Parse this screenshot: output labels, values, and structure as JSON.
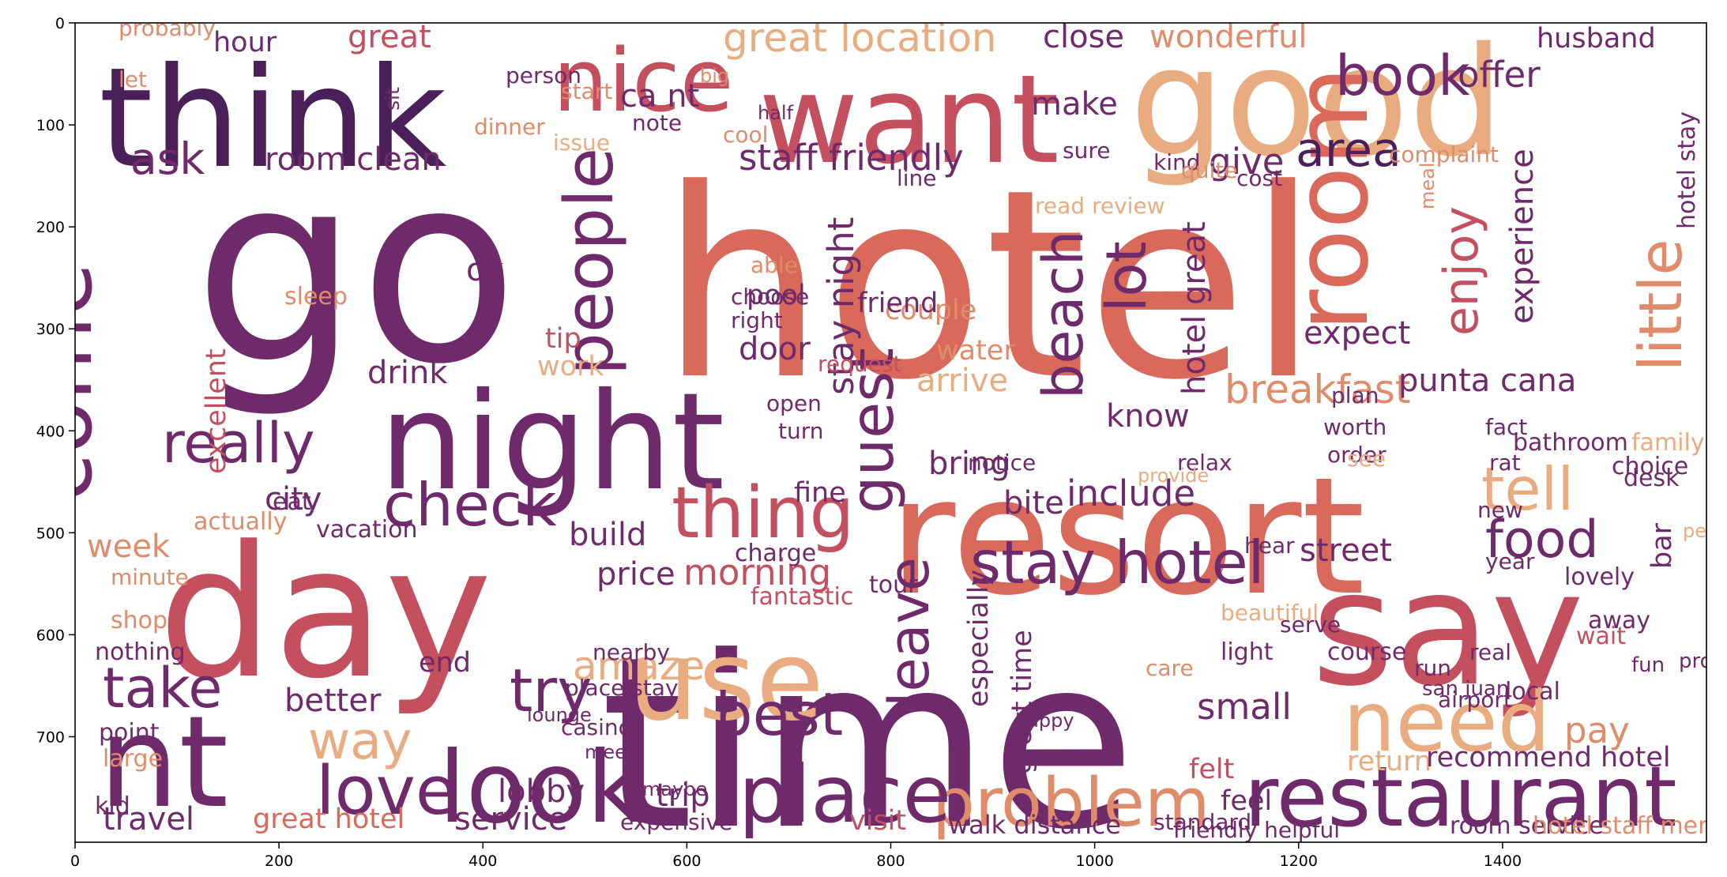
{
  "palette": [
    "#4a1f5a",
    "#6e2a6b",
    "#8f3b6e",
    "#c44f5f",
    "#d9695a",
    "#e08b6a",
    "#e9ab80",
    "#f0c6a0"
  ],
  "x_ticks": [
    "0",
    "200",
    "400",
    "600",
    "800",
    "1000",
    "1200",
    "1400"
  ],
  "y_ticks": [
    "0",
    "100",
    "200",
    "300",
    "400",
    "500",
    "600",
    "700"
  ],
  "words": [
    {
      "text": "hotel",
      "c": 4
    },
    {
      "text": "time",
      "c": 1
    },
    {
      "text": "go",
      "c": 1
    },
    {
      "text": "resort",
      "c": 4
    },
    {
      "text": "day",
      "c": 3
    },
    {
      "text": "say",
      "c": 3
    },
    {
      "text": "night",
      "c": 1
    },
    {
      "text": "think",
      "c": 0
    },
    {
      "text": "want",
      "c": 3
    },
    {
      "text": "good",
      "c": 6
    },
    {
      "text": "nt",
      "c": 1
    },
    {
      "text": "come",
      "c": 1
    },
    {
      "text": "room",
      "c": 4
    },
    {
      "text": "use",
      "c": 6
    },
    {
      "text": "nice",
      "c": 3
    },
    {
      "text": "restaurant",
      "c": 1
    },
    {
      "text": "look",
      "c": 1
    },
    {
      "text": "people",
      "c": 1
    },
    {
      "text": "problem",
      "c": 5
    },
    {
      "text": "need",
      "c": 6
    },
    {
      "text": "place",
      "c": 1
    },
    {
      "text": "little",
      "c": 5
    },
    {
      "text": "thing",
      "c": 3
    },
    {
      "text": "love",
      "c": 1
    },
    {
      "text": "check",
      "c": 1
    },
    {
      "text": "stay hotel",
      "c": 1
    },
    {
      "text": "really",
      "c": 1
    },
    {
      "text": "best",
      "c": 1
    },
    {
      "text": "food",
      "c": 1
    },
    {
      "text": "take",
      "c": 1
    },
    {
      "text": "tell",
      "c": 6
    },
    {
      "text": "guest",
      "c": 1
    },
    {
      "text": "book",
      "c": 1
    },
    {
      "text": "leave",
      "c": 1
    },
    {
      "text": "area",
      "c": 0
    },
    {
      "text": "beach",
      "c": 1
    },
    {
      "text": "try",
      "c": 1
    },
    {
      "text": "lot",
      "c": 1
    },
    {
      "text": "enjoy",
      "c": 3
    },
    {
      "text": "way",
      "c": 6
    },
    {
      "text": "great location",
      "c": 6
    },
    {
      "text": "ask",
      "c": 1
    },
    {
      "text": "breakfast",
      "c": 5
    },
    {
      "text": "amaze",
      "c": 6
    },
    {
      "text": "pay",
      "c": 5
    },
    {
      "text": "restaurant",
      "c": 1
    },
    {
      "text": "staff friendly",
      "c": 1
    },
    {
      "text": "room clean",
      "c": 1
    },
    {
      "text": "stay night",
      "c": 1
    },
    {
      "text": "punta cana",
      "c": 1
    },
    {
      "text": "include",
      "c": 1
    },
    {
      "text": "morning",
      "c": 3
    },
    {
      "text": "experience",
      "c": 1
    },
    {
      "text": "expect",
      "c": 1
    },
    {
      "text": "better",
      "c": 1
    },
    {
      "text": "travel",
      "c": 1
    },
    {
      "text": "lobby",
      "c": 1
    },
    {
      "text": "trip",
      "c": 1
    },
    {
      "text": "service",
      "c": 1
    },
    {
      "text": "small",
      "c": 1
    },
    {
      "text": "bring",
      "c": 1
    },
    {
      "text": "know",
      "c": 1
    },
    {
      "text": "great hotel",
      "c": 4
    },
    {
      "text": "walk distance",
      "c": 1
    },
    {
      "text": "arrive",
      "c": 6
    },
    {
      "text": "close",
      "c": 1
    },
    {
      "text": "wonderful",
      "c": 5
    },
    {
      "text": "offer",
      "c": 1
    },
    {
      "text": "give",
      "c": 1
    },
    {
      "text": "make",
      "c": 1
    },
    {
      "text": "drink",
      "c": 1
    },
    {
      "text": "ca nt",
      "c": 1
    },
    {
      "text": "city",
      "c": 1
    },
    {
      "text": "week",
      "c": 5
    },
    {
      "text": "price",
      "c": 1
    },
    {
      "text": "build",
      "c": 1
    },
    {
      "text": "street",
      "c": 1
    },
    {
      "text": "bite",
      "c": 1
    },
    {
      "text": "hotel great",
      "c": 1
    },
    {
      "text": "door",
      "c": 1
    },
    {
      "text": "great",
      "c": 3
    },
    {
      "text": "hour",
      "c": 1
    },
    {
      "text": "excellent",
      "c": 3
    },
    {
      "text": "work",
      "c": 6
    },
    {
      "text": "end",
      "c": 1
    },
    {
      "text": "pool",
      "c": 1
    },
    {
      "text": "couple",
      "c": 5
    },
    {
      "text": "ok",
      "c": 1
    },
    {
      "text": "feel",
      "c": 1
    },
    {
      "text": "felt",
      "c": 3
    },
    {
      "text": "return",
      "c": 6
    },
    {
      "text": "visit",
      "c": 3
    },
    {
      "text": "recommend hotel",
      "c": 1
    },
    {
      "text": "room service",
      "c": 1
    },
    {
      "text": "hotel staff mention",
      "c": 5
    },
    {
      "text": "fine",
      "c": 1
    },
    {
      "text": "tip",
      "c": 3
    },
    {
      "text": "bar",
      "c": 1
    },
    {
      "text": "husband",
      "c": 1
    },
    {
      "text": "hotel stay",
      "c": 1
    },
    {
      "text": "friend",
      "c": 1
    },
    {
      "text": "water",
      "c": 5
    },
    {
      "text": "especially",
      "c": 1
    },
    {
      "text": "great time",
      "c": 1
    },
    {
      "text": "eat",
      "c": 1
    },
    {
      "text": "sleep",
      "c": 5
    },
    {
      "text": "light",
      "c": 1
    },
    {
      "text": "course",
      "c": 1
    },
    {
      "text": "local",
      "c": 1
    },
    {
      "text": "wait",
      "c": 3
    },
    {
      "text": "away",
      "c": 1
    },
    {
      "text": "lovely",
      "c": 1
    },
    {
      "text": "bathroom",
      "c": 1
    },
    {
      "text": "family",
      "c": 6
    },
    {
      "text": "choice",
      "c": 1
    },
    {
      "text": "desk",
      "c": 1
    },
    {
      "text": "fantastic",
      "c": 3
    },
    {
      "text": "charge",
      "c": 1
    },
    {
      "text": "tour",
      "c": 1
    },
    {
      "text": "vacation",
      "c": 1
    },
    {
      "text": "minute",
      "c": 5
    },
    {
      "text": "shop",
      "c": 5
    },
    {
      "text": "nothing",
      "c": 1
    },
    {
      "text": "large",
      "c": 5
    },
    {
      "text": "point",
      "c": 1
    },
    {
      "text": "kid",
      "c": 1
    },
    {
      "text": "actually",
      "c": 5
    },
    {
      "text": "probably",
      "c": 5
    },
    {
      "text": "let",
      "c": 5
    },
    {
      "text": "sit",
      "c": 1
    },
    {
      "text": "person",
      "c": 1
    },
    {
      "text": "start",
      "c": 5
    },
    {
      "text": "issue",
      "c": 6
    },
    {
      "text": "dinner",
      "c": 5
    },
    {
      "text": "note",
      "c": 1
    },
    {
      "text": "cool",
      "c": 5
    },
    {
      "text": "line",
      "c": 1
    },
    {
      "text": "sure",
      "c": 1
    },
    {
      "text": "kind",
      "c": 1
    },
    {
      "text": "quite",
      "c": 5
    },
    {
      "text": "cost",
      "c": 1
    },
    {
      "text": "complaint",
      "c": 5
    },
    {
      "text": "meal",
      "c": 5
    },
    {
      "text": "read review",
      "c": 6
    },
    {
      "text": "able",
      "c": 5
    },
    {
      "text": "choose",
      "c": 1
    },
    {
      "text": "right",
      "c": 1
    },
    {
      "text": "request",
      "c": 3
    },
    {
      "text": "open",
      "c": 1
    },
    {
      "text": "turn",
      "c": 1
    },
    {
      "text": "plan",
      "c": 1
    },
    {
      "text": "worth",
      "c": 1
    },
    {
      "text": "fact",
      "c": 1
    },
    {
      "text": "order",
      "c": 1
    },
    {
      "text": "relax",
      "c": 1
    },
    {
      "text": "notice",
      "c": 1
    },
    {
      "text": "provide",
      "c": 6
    },
    {
      "text": "see",
      "c": 6
    },
    {
      "text": "rat",
      "c": 1
    },
    {
      "text": "new",
      "c": 1
    },
    {
      "text": "year",
      "c": 1
    },
    {
      "text": "perfect",
      "c": 6
    },
    {
      "text": "hear",
      "c": 1
    },
    {
      "text": "serve",
      "c": 1
    },
    {
      "text": "real",
      "c": 1
    },
    {
      "text": "run",
      "c": 1
    },
    {
      "text": "care",
      "c": 5
    },
    {
      "text": "beautiful",
      "c": 6
    },
    {
      "text": "nearby",
      "c": 1
    },
    {
      "text": "place stay",
      "c": 1
    },
    {
      "text": "casino",
      "c": 1
    },
    {
      "text": "expensive",
      "c": 1
    },
    {
      "text": "friendly helpful",
      "c": 1
    },
    {
      "text": "standard",
      "c": 1
    },
    {
      "text": "happy",
      "c": 1
    },
    {
      "text": "airport",
      "c": 1
    },
    {
      "text": "property",
      "c": 1
    },
    {
      "text": "fun",
      "c": 1
    },
    {
      "text": "san juan",
      "c": 1
    },
    {
      "text": "lounge",
      "c": 1
    },
    {
      "text": "meet",
      "c": 1
    },
    {
      "text": "maybe",
      "c": 1
    },
    {
      "text": "big",
      "c": 5
    },
    {
      "text": "half",
      "c": 1
    }
  ]
}
